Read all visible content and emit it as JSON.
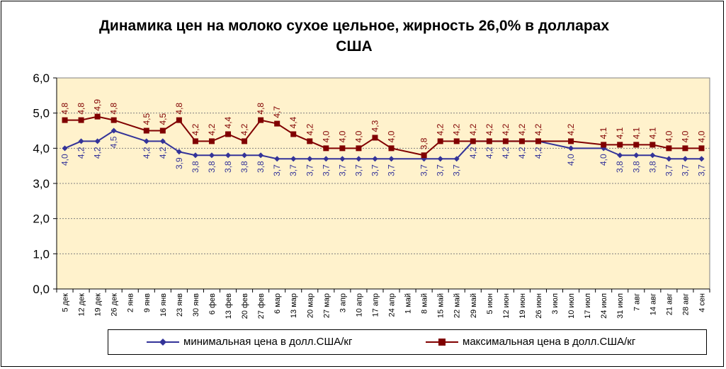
{
  "chart_data": {
    "type": "line",
    "title": "Динамика цен на молоко сухое цельное, жирность 26,0%  в долларах США",
    "xlabel": "",
    "ylabel": "",
    "ylim": [
      0,
      6
    ],
    "y_ticks": [
      "0,0",
      "1,0",
      "2,0",
      "3,0",
      "4,0",
      "5,0",
      "6,0"
    ],
    "grid": true,
    "legend_position": "bottom",
    "categories": [
      "5 дек",
      "12 дек",
      "19 дек",
      "26 дек",
      "2 янв",
      "9 янв",
      "16 янв",
      "23 янв",
      "30 янв",
      "6 фев",
      "13 фев",
      "20 фев",
      "27 фев",
      "6 мар",
      "13 мар",
      "20 мар",
      "27 мар",
      "3 апр",
      "10 апр",
      "17 апр",
      "24 апр",
      "1 май",
      "8 май",
      "15 май",
      "22 май",
      "29 май",
      "5 июн",
      "12 июн",
      "19 июн",
      "26 июн",
      "3 июл",
      "10 июл",
      "17 июл",
      "24 июл",
      "31 июл",
      "7 авг",
      "14 авг",
      "21 авг",
      "28 авг",
      "4 сен"
    ],
    "series": [
      {
        "name": "минимальная цена в долл.США/кг",
        "color": "#333399",
        "marker": "diamond",
        "values": [
          4.0,
          4.2,
          4.2,
          4.5,
          null,
          4.2,
          4.2,
          3.9,
          3.8,
          3.8,
          3.8,
          3.8,
          3.8,
          3.7,
          3.7,
          3.7,
          3.7,
          3.7,
          3.7,
          3.7,
          3.7,
          null,
          3.7,
          3.7,
          3.7,
          4.2,
          4.2,
          4.2,
          4.2,
          4.2,
          null,
          4.0,
          null,
          4.0,
          3.8,
          3.8,
          3.8,
          3.7,
          3.7,
          3.7
        ],
        "labels": [
          "4,0",
          "4,2",
          "4,2",
          "4,5",
          "",
          "4,2",
          "4,2",
          "3,9",
          "3,8",
          "3,8",
          "3,8",
          "3,8",
          "3,8",
          "3,7",
          "3,7",
          "3,7",
          "3,7",
          "3,7",
          "3,7",
          "3,7",
          "3,7",
          "",
          "3,7",
          "3,7",
          "3,7",
          "4,2",
          "4,2",
          "4,2",
          "4,2",
          "4,2",
          "",
          "4,0",
          "",
          "4,0",
          "3,8",
          "3,8",
          "3,8",
          "3,7",
          "3,7",
          "3,7"
        ]
      },
      {
        "name": "максимальная цена в долл.США/кг",
        "color": "#800000",
        "marker": "square",
        "values": [
          4.8,
          4.8,
          4.9,
          4.8,
          null,
          4.5,
          4.5,
          4.8,
          4.2,
          4.2,
          4.4,
          4.2,
          4.8,
          4.7,
          4.4,
          4.2,
          4.0,
          4.0,
          4.0,
          4.3,
          4.0,
          null,
          3.8,
          4.2,
          4.2,
          4.2,
          4.2,
          4.2,
          4.2,
          4.2,
          null,
          4.2,
          null,
          4.1,
          4.1,
          4.1,
          4.1,
          4.0,
          4.0,
          4.0
        ],
        "labels": [
          "4,8",
          "4,8",
          "4,9",
          "4,8",
          "",
          "4,5",
          "4,5",
          "4,8",
          "4,2",
          "4,2",
          "4,4",
          "4,2",
          "4,8",
          "4,7",
          "4,4",
          "4,2",
          "4,0",
          "4,0",
          "4,0",
          "4,3",
          "4,0",
          "",
          "3,8",
          "4,2",
          "4,2",
          "4,2",
          "4,2",
          "4,2",
          "4,2",
          "4,2",
          "",
          "4,2",
          "",
          "4,1",
          "4,1",
          "4,1",
          "4,1",
          "4,0",
          "4,0",
          "4,0"
        ]
      }
    ]
  },
  "colors": {
    "plot_background": "#FFF2CC",
    "gridline": "#808080",
    "axis": "#000000"
  }
}
